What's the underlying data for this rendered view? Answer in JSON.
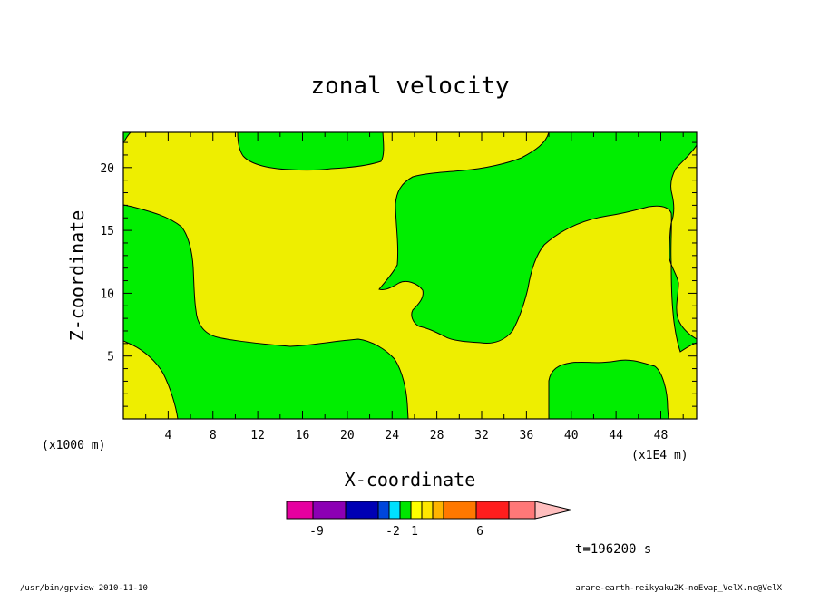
{
  "chart_data": {
    "type": "contour",
    "title": "zonal velocity",
    "xlabel": "X-coordinate",
    "ylabel": "Z-coordinate",
    "x_unit_left": "(x1000 m)",
    "x_unit_right": "(x1E4 m)",
    "xlim": [
      0,
      51.2
    ],
    "ylim": [
      0,
      22.8
    ],
    "x_ticks": [
      "4",
      "8",
      "12",
      "16",
      "20",
      "24",
      "28",
      "32",
      "36",
      "40",
      "44",
      "48"
    ],
    "y_ticks": [
      "5",
      "10",
      "15",
      "20"
    ],
    "regions": [
      {
        "level": "(-1, 0)",
        "color": "#00ee00"
      },
      {
        "level": "(0, 1)",
        "color": "#eeee00"
      }
    ],
    "colorbar": {
      "colors": [
        "#e600a0",
        "#8c00b4",
        "#0000b4",
        "#0046dc",
        "#00e1ff",
        "#00e600",
        "#ffff00",
        "#ffe600",
        "#ffb400",
        "#ff7800",
        "#ff1e1e",
        "#ff7878",
        "#ffbebe"
      ],
      "tick_labels": [
        "-9",
        "-2",
        "1",
        "6"
      ]
    },
    "time_label": "t=196200 s"
  },
  "footer": {
    "left": "/usr/bin/gpview  2010-11-10",
    "right": "arare-earth-reikyaku2K-noEvap_VelX.nc@VelX"
  }
}
